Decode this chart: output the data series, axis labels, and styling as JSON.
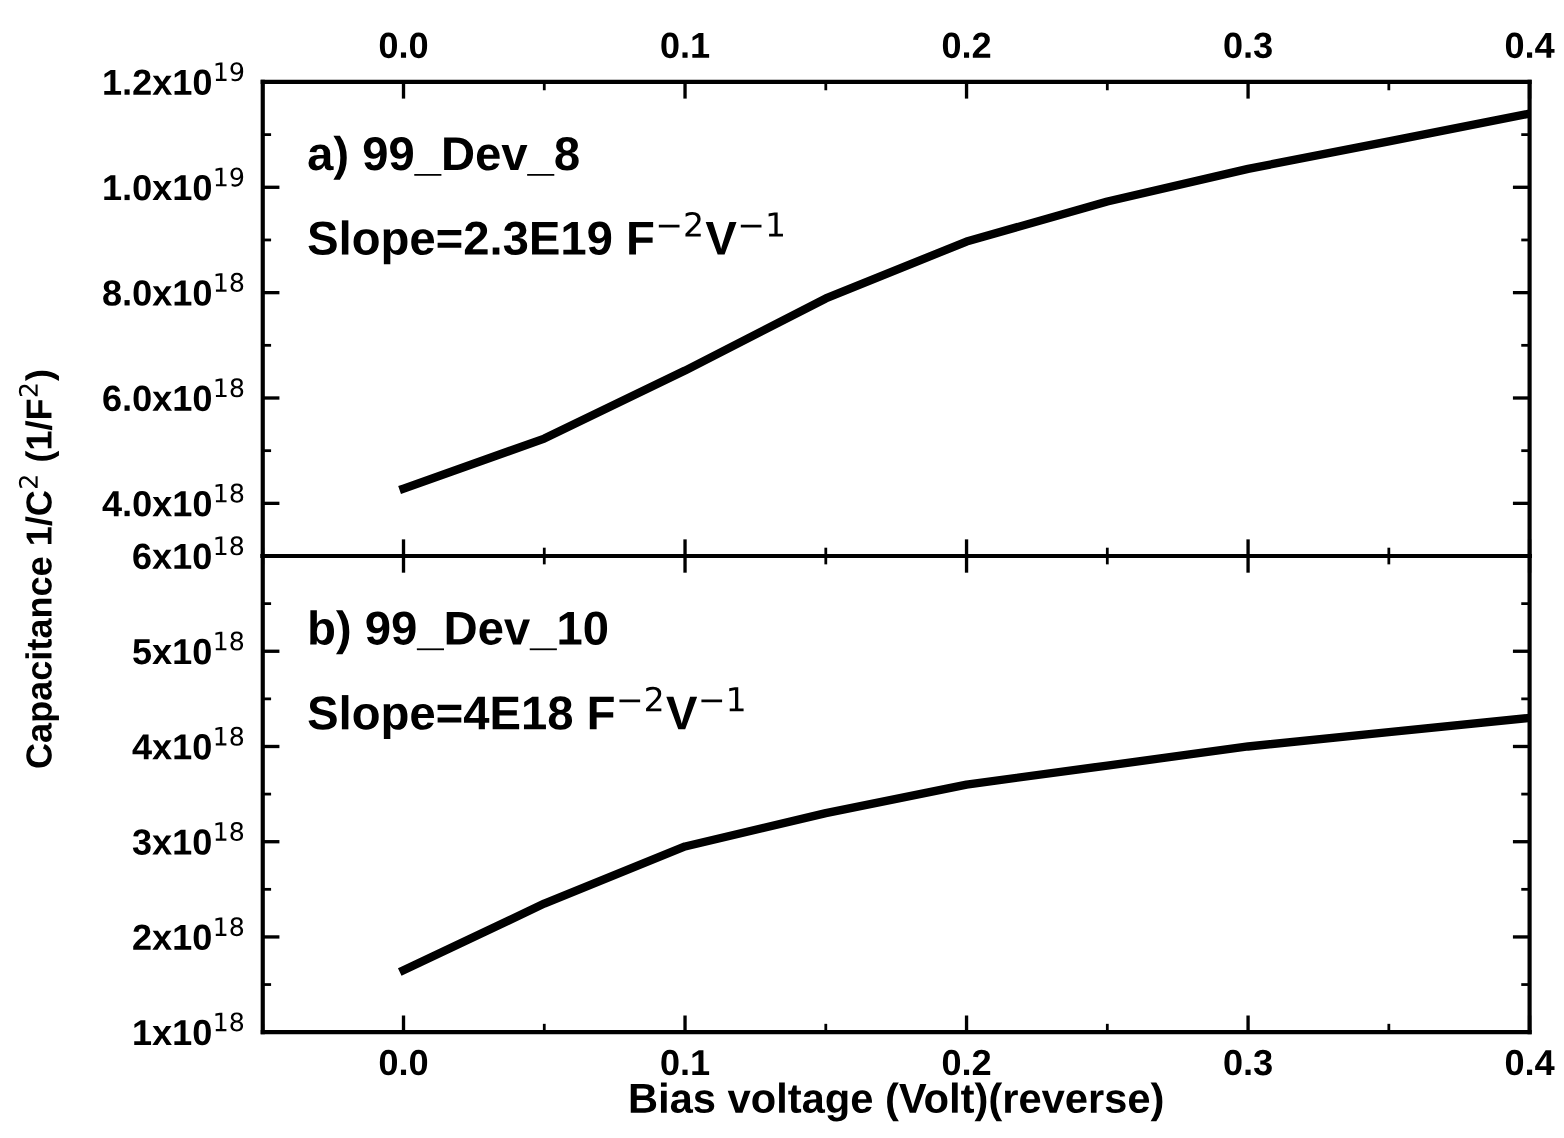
{
  "chart_data": [
    {
      "type": "line",
      "ylabel": "Capacitance 1/C$^{2}$ (1/F$^{2}$)",
      "annotations": [
        "a) 99_Dev_8",
        "Slope=2.3E19 F$^{−2}$V$^{−1}$"
      ],
      "series": [
        {
          "color": "#000000",
          "x": [
            0,
            0.05,
            0.1,
            0.15,
            0.2,
            0.25,
            0.3,
            0.35,
            0.4
          ],
          "values": [
            4.28e+18,
            5.23e+18,
            6.52e+18,
            7.89e+18,
            8.97e+18,
            9.73e+18,
            1.035e+19,
            1.087e+19,
            1.14e+19
          ]
        }
      ],
      "xlim": [
        -0.05,
        0.4
      ],
      "xticks": [
        {
          "value": 0,
          "label": "0.0"
        },
        0.1,
        0.2,
        0.3,
        0.4
      ],
      "ylim": [
        3e+18,
        1.2e+19
      ],
      "yticks": [
        {
          "value": 4e+18,
          "label": "4.0x10$^{18}$"
        },
        {
          "value": 6e+18,
          "label": "6.0x10$^{18}$"
        },
        {
          "value": 8e+18,
          "label": "8.0x10$^{18}$"
        },
        {
          "value": 1e+19,
          "label": "1.0x10$^{19}$"
        },
        {
          "value": 1.2e+19,
          "label": "1.2x10$^{19}$"
        }
      ],
      "grid": false,
      "legend": false,
      "marker": "none",
      "line_style": "solid"
    },
    {
      "type": "line",
      "xlabel": "Bias voltage (Volt)(reverse)",
      "annotations": [
        "b) 99_Dev_10",
        "Slope=4E18 F$^{−2}$V$^{−1}$"
      ],
      "series": [
        {
          "color": "#000000",
          "x": [
            0,
            0.05,
            0.1,
            0.15,
            0.2,
            0.25,
            0.3,
            0.35,
            0.4
          ],
          "values": [
            1.65e+18,
            2.35e+18,
            2.95e+18,
            3.3e+18,
            3.6e+18,
            3.8e+18,
            4e+18,
            4.15e+18,
            4.3e+18
          ]
        }
      ],
      "xlim": [
        -0.05,
        0.4
      ],
      "xticks": [
        {
          "value": 0,
          "label": "0.0"
        },
        0.1,
        0.2,
        0.3,
        0.4
      ],
      "ylim": [
        1e+18,
        6e+18
      ],
      "yticks": [
        {
          "value": 1e+18,
          "label": "1x10$^{18}$"
        },
        {
          "value": 2e+18,
          "label": "2x10$^{18}$"
        },
        {
          "value": 3e+18,
          "label": "3x10$^{18}$"
        },
        {
          "value": 4e+18,
          "label": "4x10$^{18}$"
        },
        {
          "value": 5e+18,
          "label": "5x10$^{18}$"
        },
        {
          "value": 6e+18,
          "label": "6x10$^{18}$"
        }
      ],
      "grid": false,
      "legend": false,
      "marker": "none",
      "line_style": "solid"
    }
  ]
}
